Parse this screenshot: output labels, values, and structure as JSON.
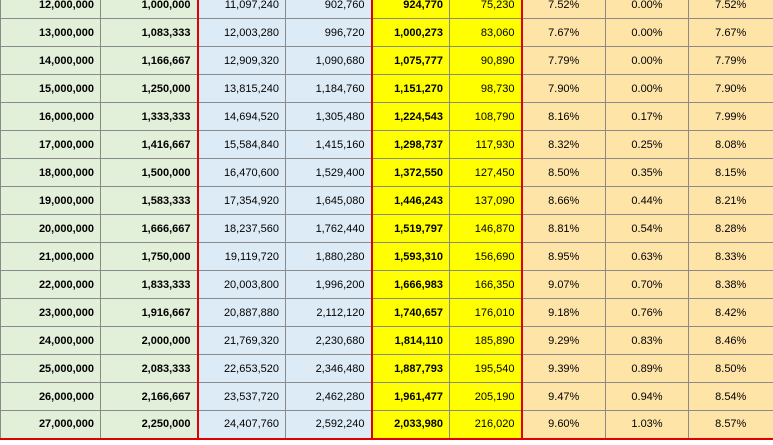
{
  "sheet": {
    "rows": [
      {
        "c1": "12,000,000",
        "c2": "1,000,000",
        "c3": "11,097,240",
        "c4": "902,760",
        "c5": "924,770",
        "c6": "75,230",
        "c7": "7.52%",
        "c8": "0.00%",
        "c9": "7.52%"
      },
      {
        "c1": "13,000,000",
        "c2": "1,083,333",
        "c3": "12,003,280",
        "c4": "996,720",
        "c5": "1,000,273",
        "c6": "83,060",
        "c7": "7.67%",
        "c8": "0.00%",
        "c9": "7.67%"
      },
      {
        "c1": "14,000,000",
        "c2": "1,166,667",
        "c3": "12,909,320",
        "c4": "1,090,680",
        "c5": "1,075,777",
        "c6": "90,890",
        "c7": "7.79%",
        "c8": "0.00%",
        "c9": "7.79%"
      },
      {
        "c1": "15,000,000",
        "c2": "1,250,000",
        "c3": "13,815,240",
        "c4": "1,184,760",
        "c5": "1,151,270",
        "c6": "98,730",
        "c7": "7.90%",
        "c8": "0.00%",
        "c9": "7.90%"
      },
      {
        "c1": "16,000,000",
        "c2": "1,333,333",
        "c3": "14,694,520",
        "c4": "1,305,480",
        "c5": "1,224,543",
        "c6": "108,790",
        "c7": "8.16%",
        "c8": "0.17%",
        "c9": "7.99%"
      },
      {
        "c1": "17,000,000",
        "c2": "1,416,667",
        "c3": "15,584,840",
        "c4": "1,415,160",
        "c5": "1,298,737",
        "c6": "117,930",
        "c7": "8.32%",
        "c8": "0.25%",
        "c9": "8.08%"
      },
      {
        "c1": "18,000,000",
        "c2": "1,500,000",
        "c3": "16,470,600",
        "c4": "1,529,400",
        "c5": "1,372,550",
        "c6": "127,450",
        "c7": "8.50%",
        "c8": "0.35%",
        "c9": "8.15%"
      },
      {
        "c1": "19,000,000",
        "c2": "1,583,333",
        "c3": "17,354,920",
        "c4": "1,645,080",
        "c5": "1,446,243",
        "c6": "137,090",
        "c7": "8.66%",
        "c8": "0.44%",
        "c9": "8.21%"
      },
      {
        "c1": "20,000,000",
        "c2": "1,666,667",
        "c3": "18,237,560",
        "c4": "1,762,440",
        "c5": "1,519,797",
        "c6": "146,870",
        "c7": "8.81%",
        "c8": "0.54%",
        "c9": "8.28%"
      },
      {
        "c1": "21,000,000",
        "c2": "1,750,000",
        "c3": "19,119,720",
        "c4": "1,880,280",
        "c5": "1,593,310",
        "c6": "156,690",
        "c7": "8.95%",
        "c8": "0.63%",
        "c9": "8.33%"
      },
      {
        "c1": "22,000,000",
        "c2": "1,833,333",
        "c3": "20,003,800",
        "c4": "1,996,200",
        "c5": "1,666,983",
        "c6": "166,350",
        "c7": "9.07%",
        "c8": "0.70%",
        "c9": "8.38%"
      },
      {
        "c1": "23,000,000",
        "c2": "1,916,667",
        "c3": "20,887,880",
        "c4": "2,112,120",
        "c5": "1,740,657",
        "c6": "176,010",
        "c7": "9.18%",
        "c8": "0.76%",
        "c9": "8.42%"
      },
      {
        "c1": "24,000,000",
        "c2": "2,000,000",
        "c3": "21,769,320",
        "c4": "2,230,680",
        "c5": "1,814,110",
        "c6": "185,890",
        "c7": "9.29%",
        "c8": "0.83%",
        "c9": "8.46%"
      },
      {
        "c1": "25,000,000",
        "c2": "2,083,333",
        "c3": "22,653,520",
        "c4": "2,346,480",
        "c5": "1,887,793",
        "c6": "195,540",
        "c7": "9.39%",
        "c8": "0.89%",
        "c9": "8.50%"
      },
      {
        "c1": "26,000,000",
        "c2": "2,166,667",
        "c3": "23,537,720",
        "c4": "2,462,280",
        "c5": "1,961,477",
        "c6": "205,190",
        "c7": "9.47%",
        "c8": "0.94%",
        "c9": "8.54%"
      },
      {
        "c1": "27,000,000",
        "c2": "2,250,000",
        "c3": "24,407,760",
        "c4": "2,592,240",
        "c5": "2,033,980",
        "c6": "216,020",
        "c7": "9.60%",
        "c8": "1.03%",
        "c9": "8.57%"
      }
    ]
  }
}
